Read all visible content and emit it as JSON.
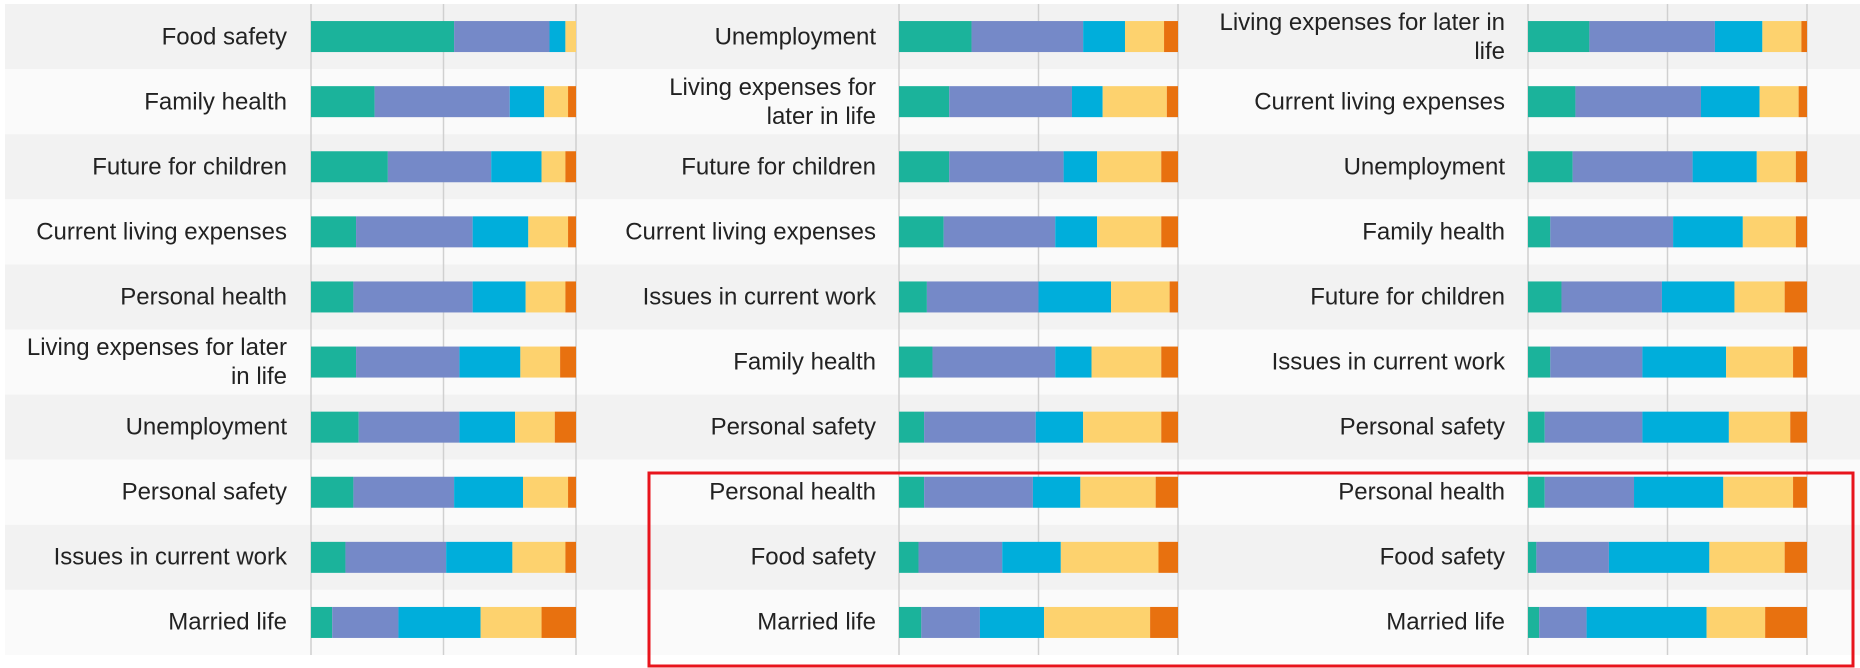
{
  "chart_data": [
    {
      "type": "bar",
      "orientation": "horizontal",
      "stacked": true,
      "grid": true,
      "xlim": [
        0,
        100
      ],
      "xticks": [
        0,
        50,
        100
      ],
      "categories": [
        "Food safety",
        "Family health",
        "Future for children",
        "Current living expenses",
        "Personal health",
        "Living expenses for later in life",
        "Unemployment",
        "Personal safety",
        "Issues in current work",
        "Married life"
      ],
      "series": [
        {
          "color": "#1bb39b",
          "values": [
            54,
            24,
            29,
            17,
            16,
            17,
            18,
            16,
            13,
            8
          ]
        },
        {
          "color": "#7589c8",
          "values": [
            36,
            51,
            39,
            44,
            45,
            39,
            38,
            38,
            38,
            25
          ]
        },
        {
          "color": "#00aedb",
          "values": [
            6,
            13,
            19,
            21,
            20,
            23,
            21,
            26,
            25,
            31
          ]
        },
        {
          "color": "#fdd26e",
          "values": [
            4,
            9,
            9,
            15,
            15,
            15,
            15,
            17,
            20,
            23
          ]
        },
        {
          "color": "#e8710f",
          "values": [
            0,
            3,
            4,
            3,
            4,
            6,
            8,
            3,
            4,
            13
          ]
        }
      ]
    },
    {
      "type": "bar",
      "orientation": "horizontal",
      "stacked": true,
      "grid": true,
      "xlim": [
        0,
        100
      ],
      "xticks": [
        0,
        50,
        100
      ],
      "categories": [
        "Unemployment",
        "Living expenses for later in life",
        "Future for children",
        "Current living expenses",
        "Issues in current work",
        "Family health",
        "Personal safety",
        "Personal health",
        "Food safety",
        "Married life"
      ],
      "series": [
        {
          "color": "#1bb39b",
          "values": [
            26,
            18,
            18,
            16,
            10,
            12,
            9,
            9,
            7,
            8
          ]
        },
        {
          "color": "#7589c8",
          "values": [
            40,
            44,
            41,
            40,
            40,
            44,
            40,
            39,
            30,
            21
          ]
        },
        {
          "color": "#00aedb",
          "values": [
            15,
            11,
            12,
            15,
            26,
            13,
            17,
            17,
            21,
            23
          ]
        },
        {
          "color": "#fdd26e",
          "values": [
            14,
            23,
            23,
            23,
            21,
            25,
            28,
            27,
            35,
            38
          ]
        },
        {
          "color": "#e8710f",
          "values": [
            5,
            4,
            6,
            6,
            3,
            6,
            6,
            8,
            7,
            10
          ]
        }
      ]
    },
    {
      "type": "bar",
      "orientation": "horizontal",
      "stacked": true,
      "grid": true,
      "xlim": [
        0,
        100
      ],
      "xticks": [
        0,
        50,
        100
      ],
      "categories": [
        "Living expenses for later in life",
        "Current living expenses",
        "Unemployment",
        "Family health",
        "Future for children",
        "Issues in current work",
        "Personal safety",
        "Personal health",
        "Food safety",
        "Married life"
      ],
      "series": [
        {
          "color": "#1bb39b",
          "values": [
            22,
            17,
            16,
            8,
            12,
            8,
            6,
            6,
            3,
            4
          ]
        },
        {
          "color": "#7589c8",
          "values": [
            45,
            45,
            43,
            44,
            36,
            33,
            35,
            32,
            26,
            17
          ]
        },
        {
          "color": "#00aedb",
          "values": [
            17,
            21,
            23,
            25,
            26,
            30,
            31,
            32,
            36,
            43
          ]
        },
        {
          "color": "#fdd26e",
          "values": [
            14,
            14,
            14,
            19,
            18,
            24,
            22,
            25,
            27,
            21
          ]
        },
        {
          "color": "#e8710f",
          "values": [
            2,
            3,
            4,
            4,
            8,
            5,
            6,
            5,
            8,
            15
          ]
        }
      ]
    }
  ]
}
